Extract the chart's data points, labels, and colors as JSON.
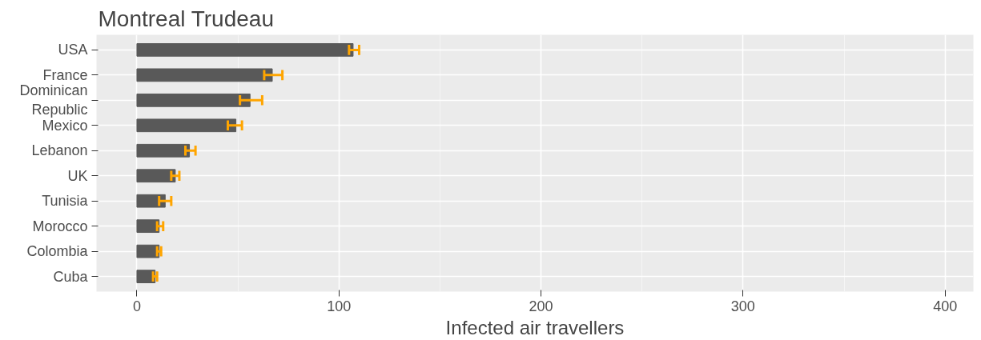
{
  "chart_data": {
    "type": "bar",
    "orientation": "horizontal",
    "title": "Montreal Trudeau",
    "xlabel": "Infected air travellers",
    "categories": [
      "USA",
      "France",
      "Dominican Republic",
      "Mexico",
      "Lebanon",
      "UK",
      "Tunisia",
      "Morocco",
      "Colombia",
      "Cuba"
    ],
    "values": [
      107,
      67,
      56,
      49,
      26,
      19,
      14,
      11,
      11,
      9
    ],
    "color": "#595959",
    "errors": [
      [
        105,
        110
      ],
      [
        63,
        72
      ],
      [
        51,
        62
      ],
      [
        45,
        52
      ],
      [
        24,
        29
      ],
      [
        17,
        21
      ],
      [
        11,
        17
      ],
      [
        10,
        13
      ],
      [
        10,
        12
      ],
      [
        8,
        10
      ]
    ],
    "xlim": [
      -20,
      414
    ],
    "xticks": [
      0,
      100,
      200,
      300,
      400
    ],
    "grid": true
  }
}
